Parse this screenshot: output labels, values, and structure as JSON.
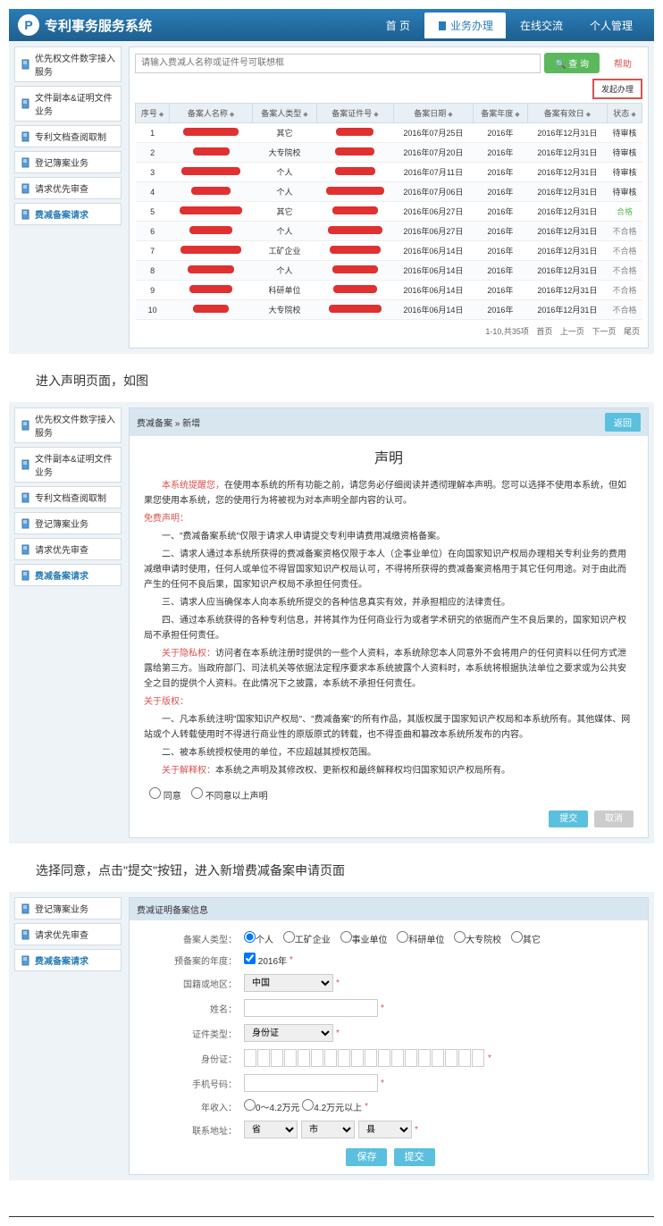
{
  "system_name": "专利事务服务系统",
  "nav": {
    "home": "首 页",
    "biz": "业务办理",
    "chat": "在线交流",
    "user": "个人管理"
  },
  "sidebar": [
    {
      "label": "优先权文件数字接入服务"
    },
    {
      "label": "文件副本&证明文件业务"
    },
    {
      "label": "专利文档查阅取制"
    },
    {
      "label": "登记簿案业务"
    },
    {
      "label": "请求优先审查"
    },
    {
      "label": "费减备案请求",
      "active": true
    }
  ],
  "search_placeholder": "请输入费减人名称或证件号可联想框",
  "btn_search": "查 询",
  "btn_help": "帮助",
  "btn_apply": "发起办理",
  "columns": [
    "序号",
    "备案人名称",
    "备案人类型",
    "备案证件号",
    "备案日期",
    "备案年度",
    "备案有效日",
    "状态"
  ],
  "rows": [
    {
      "idx": 1,
      "type": "其它",
      "date": "2016年07月25日",
      "year": "2016年",
      "valid": "2016年12月31日",
      "status": "待审核"
    },
    {
      "idx": 2,
      "type": "大专院校",
      "date": "2016年07月20日",
      "year": "2016年",
      "valid": "2016年12月31日",
      "status": "待审核"
    },
    {
      "idx": 3,
      "type": "个人",
      "date": "2016年07月11日",
      "year": "2016年",
      "valid": "2016年12月31日",
      "status": "待审核"
    },
    {
      "idx": 4,
      "type": "个人",
      "date": "2016年07月06日",
      "year": "2016年",
      "valid": "2016年12月31日",
      "status": "待审核"
    },
    {
      "idx": 5,
      "type": "其它",
      "date": "2016年06月27日",
      "year": "2016年",
      "valid": "2016年12月31日",
      "status": "合格"
    },
    {
      "idx": 6,
      "type": "个人",
      "date": "2016年06月27日",
      "year": "2016年",
      "valid": "2016年12月31日",
      "status": "不合格"
    },
    {
      "idx": 7,
      "type": "工矿企业",
      "date": "2016年06月14日",
      "year": "2016年",
      "valid": "2016年12月31日",
      "status": "不合格"
    },
    {
      "idx": 8,
      "type": "个人",
      "date": "2016年06月14日",
      "year": "2016年",
      "valid": "2016年12月31日",
      "status": "不合格"
    },
    {
      "idx": 9,
      "type": "科研单位",
      "date": "2016年06月14日",
      "year": "2016年",
      "valid": "2016年12月31日",
      "status": "不合格"
    },
    {
      "idx": 10,
      "type": "大专院校",
      "date": "2016年06月14日",
      "year": "2016年",
      "valid": "2016年12月31日",
      "status": "不合格"
    }
  ],
  "pager": {
    "info": "1-10,共35项",
    "first": "首页",
    "prev": "上一页",
    "next": "下一页",
    "last": "尾页"
  },
  "caption1": "进入声明页面，如图",
  "panel2_title": "费减备案 » 新增",
  "btn_back": "返回",
  "stmt": {
    "title": "声明",
    "warn": "本系统提醒您，",
    "warn_txt": "在使用本系统的所有功能之前，请您务必仔细阅读并透彻理解本声明。您可以选择不使用本系统，但如果您使用本系统，您的使用行为将被视为对本声明全部内容的认可。",
    "free_head": "免费声明：",
    "p1": "一、\"费减备案系统\"仅限于请求人申请提交专利申请费用减缴资格备案。",
    "p2": "二、请求人通过本系统所获得的费减备案资格仅限于本人（企事业单位）在向国家知识产权局办理相关专利业务的费用减缴申请时使用，任何人或单位不得冒国家知识产权局认可，不得将所获得的费减备案资格用于其它任何用途。对于由此而产生的任何不良后果，国家知识产权局不承担任何责任。",
    "p3": "三、请求人应当确保本人向本系统所提交的各种信息真实有效，并承担相应的法律责任。",
    "p4": "四、通过本系统获得的各种专利信息，并将其作为任何商业行为或者学术研究的依据而产生不良后果的，国家知识产权局不承担任何责任。",
    "priv_head": "关于隐私权：",
    "priv_txt": "访问者在本系统注册时提供的一些个人资料，本系统除您本人同意外不会将用户的任何资料以任何方式泄露给第三方。当政府部门、司法机关等依据法定程序要求本系统披露个人资料时，本系统将根据执法单位之要求或为公共安全之目的提供个人资料。在此情况下之披露，本系统不承担任何责任。",
    "copy_head": "关于版权：",
    "c1": "一、凡本系统注明\"国家知识产权局\"、\"费减备案\"的所有作品，其版权属于国家知识产权局和本系统所有。其他媒体、网站或个人转载使用时不得进行商业性的原版原式的转载，也不得歪曲和篡改本系统所发布的内容。",
    "c2": "二、被本系统授权使用的单位，不应超越其授权范围。",
    "interp_head": "关于解释权：",
    "interp_txt": "本系统之声明及其修改权、更新权和最终解释权均归国家知识产权局所有。",
    "agree": "同意",
    "disagree": "不同意以上声明",
    "btn_submit": "提交",
    "btn_cancel": "取消"
  },
  "caption2": "选择同意，点击\"提交\"按钮，进入新增费减备案申请页面",
  "sidebar3": [
    {
      "label": "登记簿案业务"
    },
    {
      "label": "请求优先审查"
    },
    {
      "label": "费减备案请求",
      "active": true
    }
  ],
  "panel3_title": "费减证明备案信息",
  "form": {
    "type_label": "备案人类型：",
    "types": [
      "个人",
      "工矿企业",
      "事业单位",
      "科研单位",
      "大专院校",
      "其它"
    ],
    "year_label": "预备案的年度：",
    "year_val": "2016年",
    "country_label": "国籍或地区：",
    "country_val": "中国",
    "name_label": "姓名：",
    "cert_label": "证件类型：",
    "cert_val": "身份证",
    "id_label": "身份证：",
    "phone_label": "手机号码：",
    "income_label": "年收入：",
    "income_opts": [
      "0～4.2万元",
      "4.2万元以上"
    ],
    "contact_label": "联系地址：",
    "prov": "省",
    "city": "市",
    "dist": "县",
    "btn_save": "保存",
    "btn_submit": "提交"
  }
}
